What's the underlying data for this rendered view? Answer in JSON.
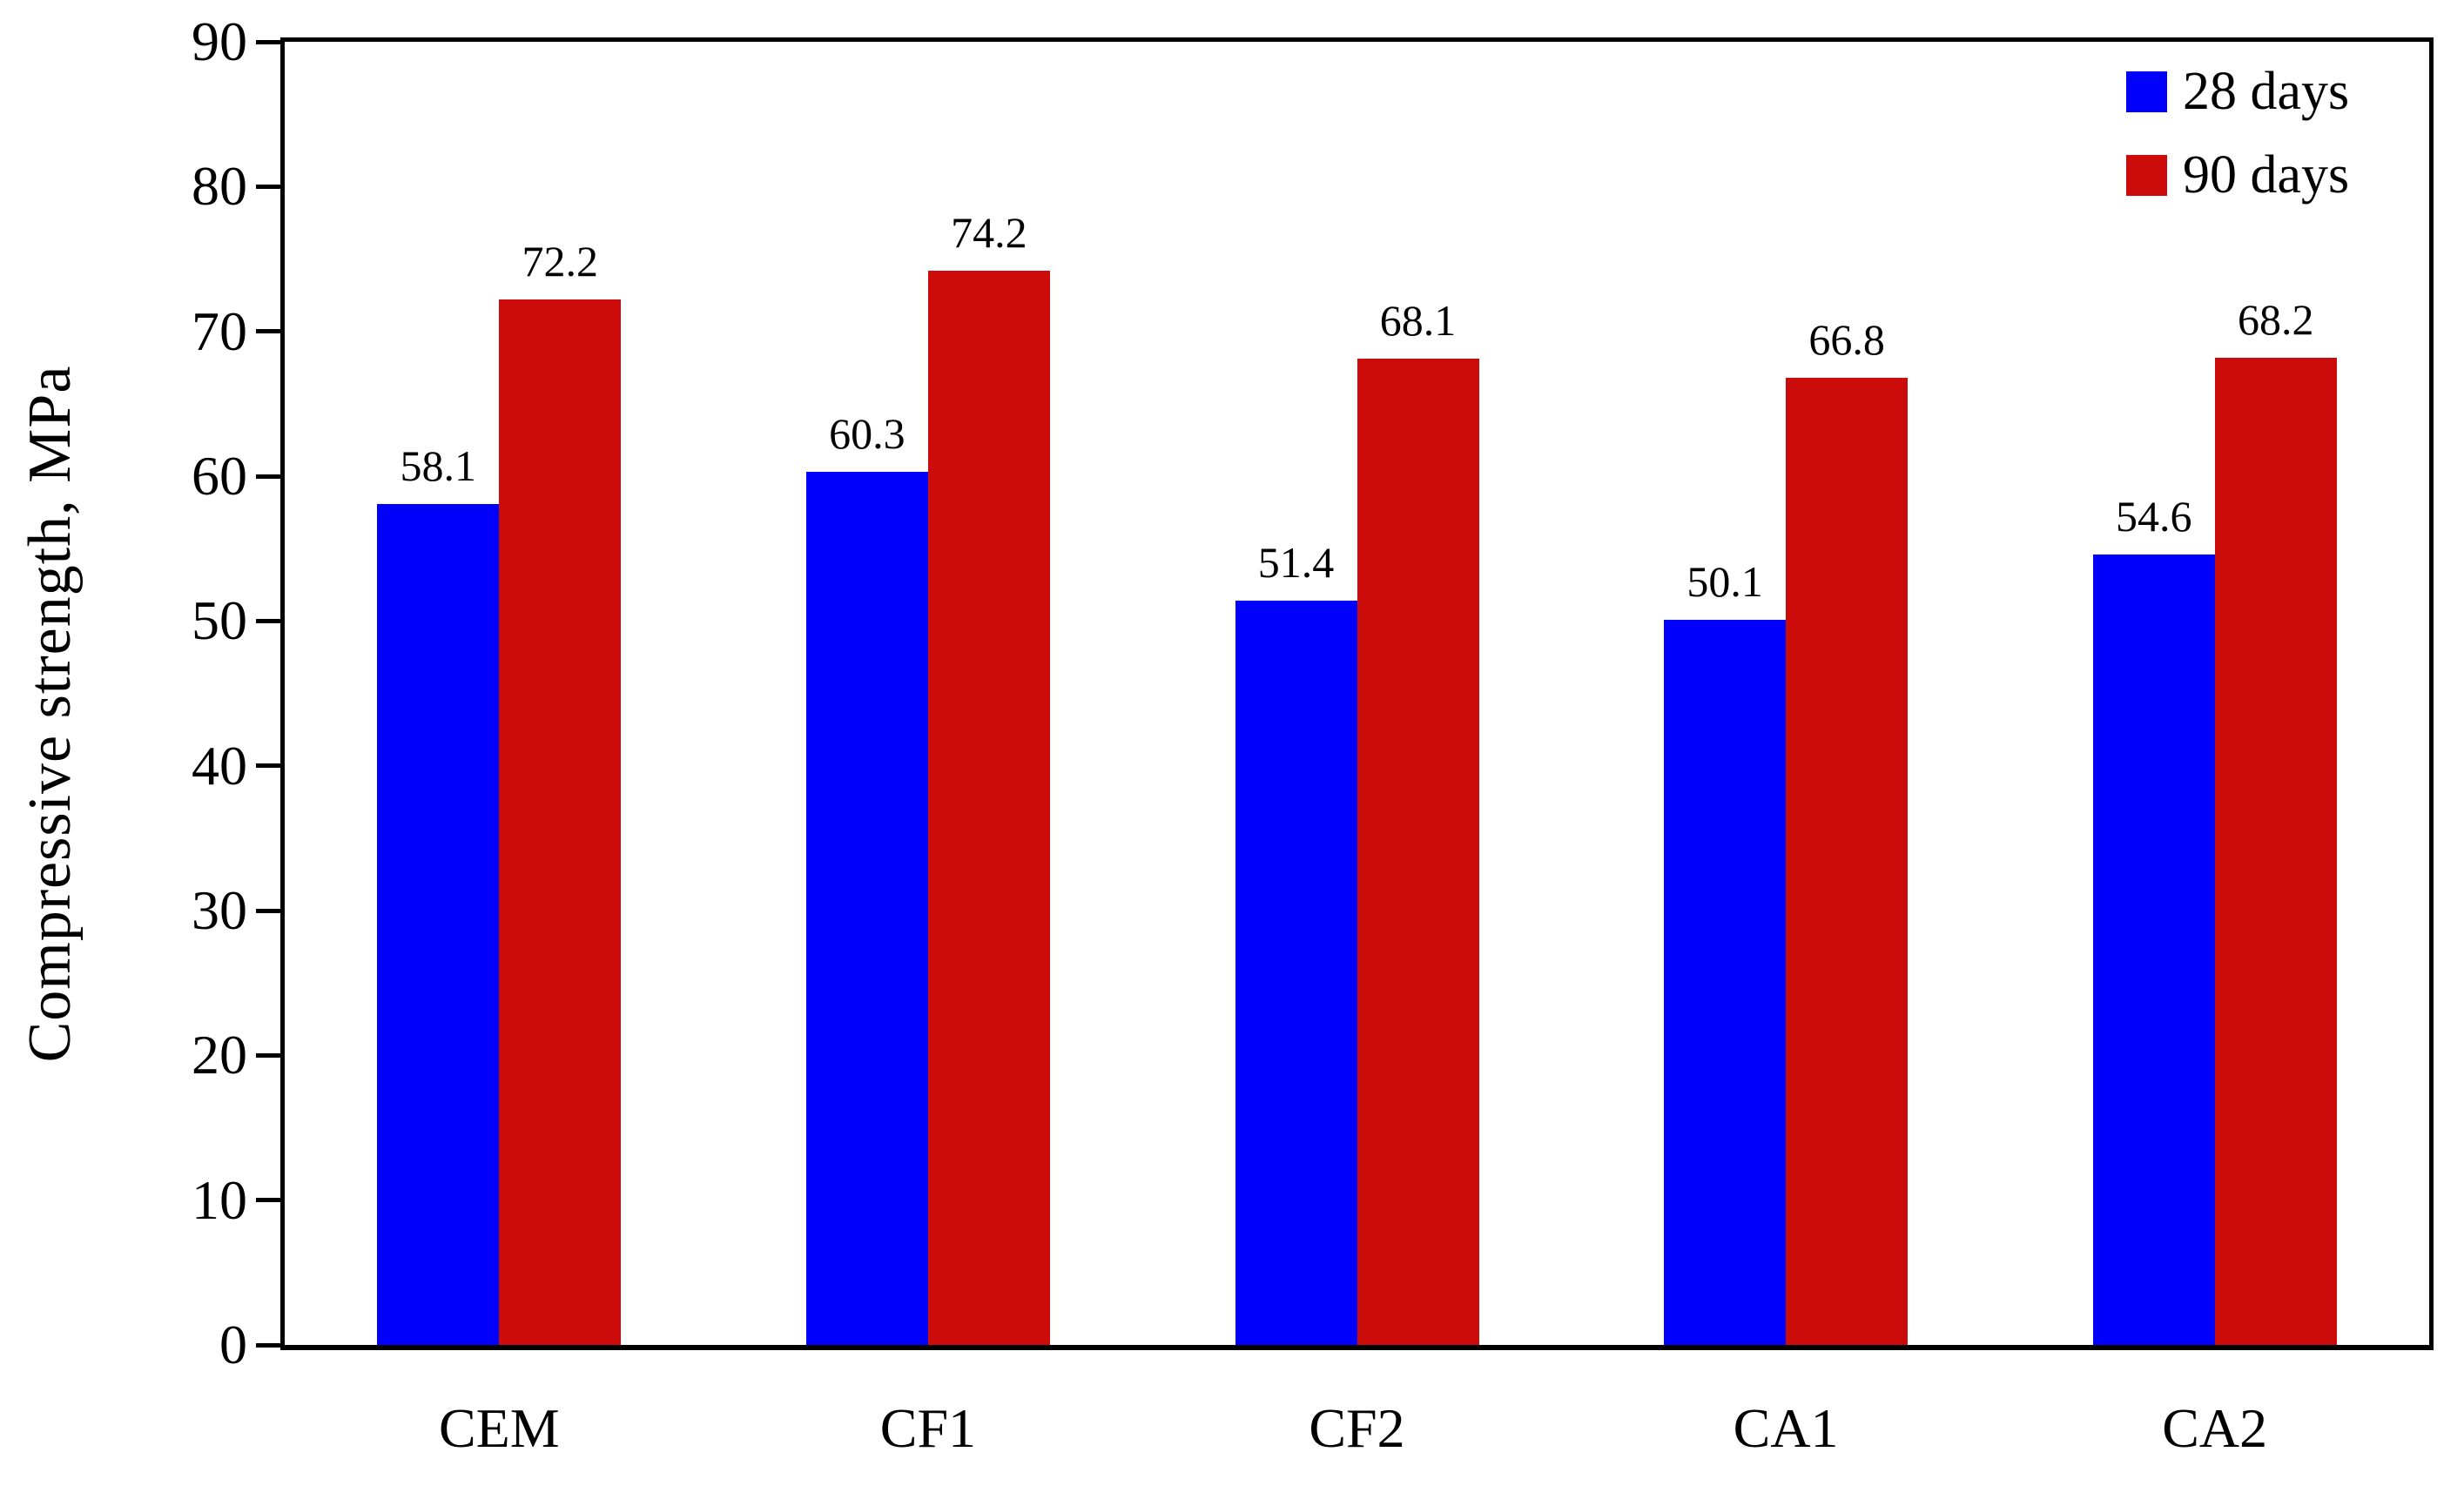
{
  "chart_data": {
    "type": "bar",
    "title": "",
    "categories": [
      "CEM",
      "CF1",
      "CF2",
      "CA1",
      "CA2"
    ],
    "series": [
      {
        "name": "28 days",
        "color": "#0000fb",
        "values": [
          58.1,
          60.3,
          51.4,
          50.1,
          54.6
        ]
      },
      {
        "name": "90 days",
        "color": "#cc0b0b",
        "values": [
          72.2,
          74.2,
          68.1,
          66.8,
          68.2
        ]
      }
    ],
    "xlabel": "",
    "ylabel": "Compressive strength, MPa",
    "ylim": [
      0,
      90
    ],
    "ytick_step": 10,
    "ytick_labels": [
      "0",
      "10",
      "20",
      "30",
      "40",
      "50",
      "60",
      "70",
      "80",
      "90"
    ],
    "value_labels": {
      "28 days": [
        "58.1",
        "60.3",
        "51.4",
        "50.1",
        "54.6"
      ],
      "90 days": [
        "72.2",
        "74.2",
        "68.1",
        "66.8",
        "68.2"
      ]
    },
    "grid": false,
    "legend_position": "top-right",
    "show_value_labels": true,
    "axis_color": "#000000",
    "background": "#ffffff"
  }
}
